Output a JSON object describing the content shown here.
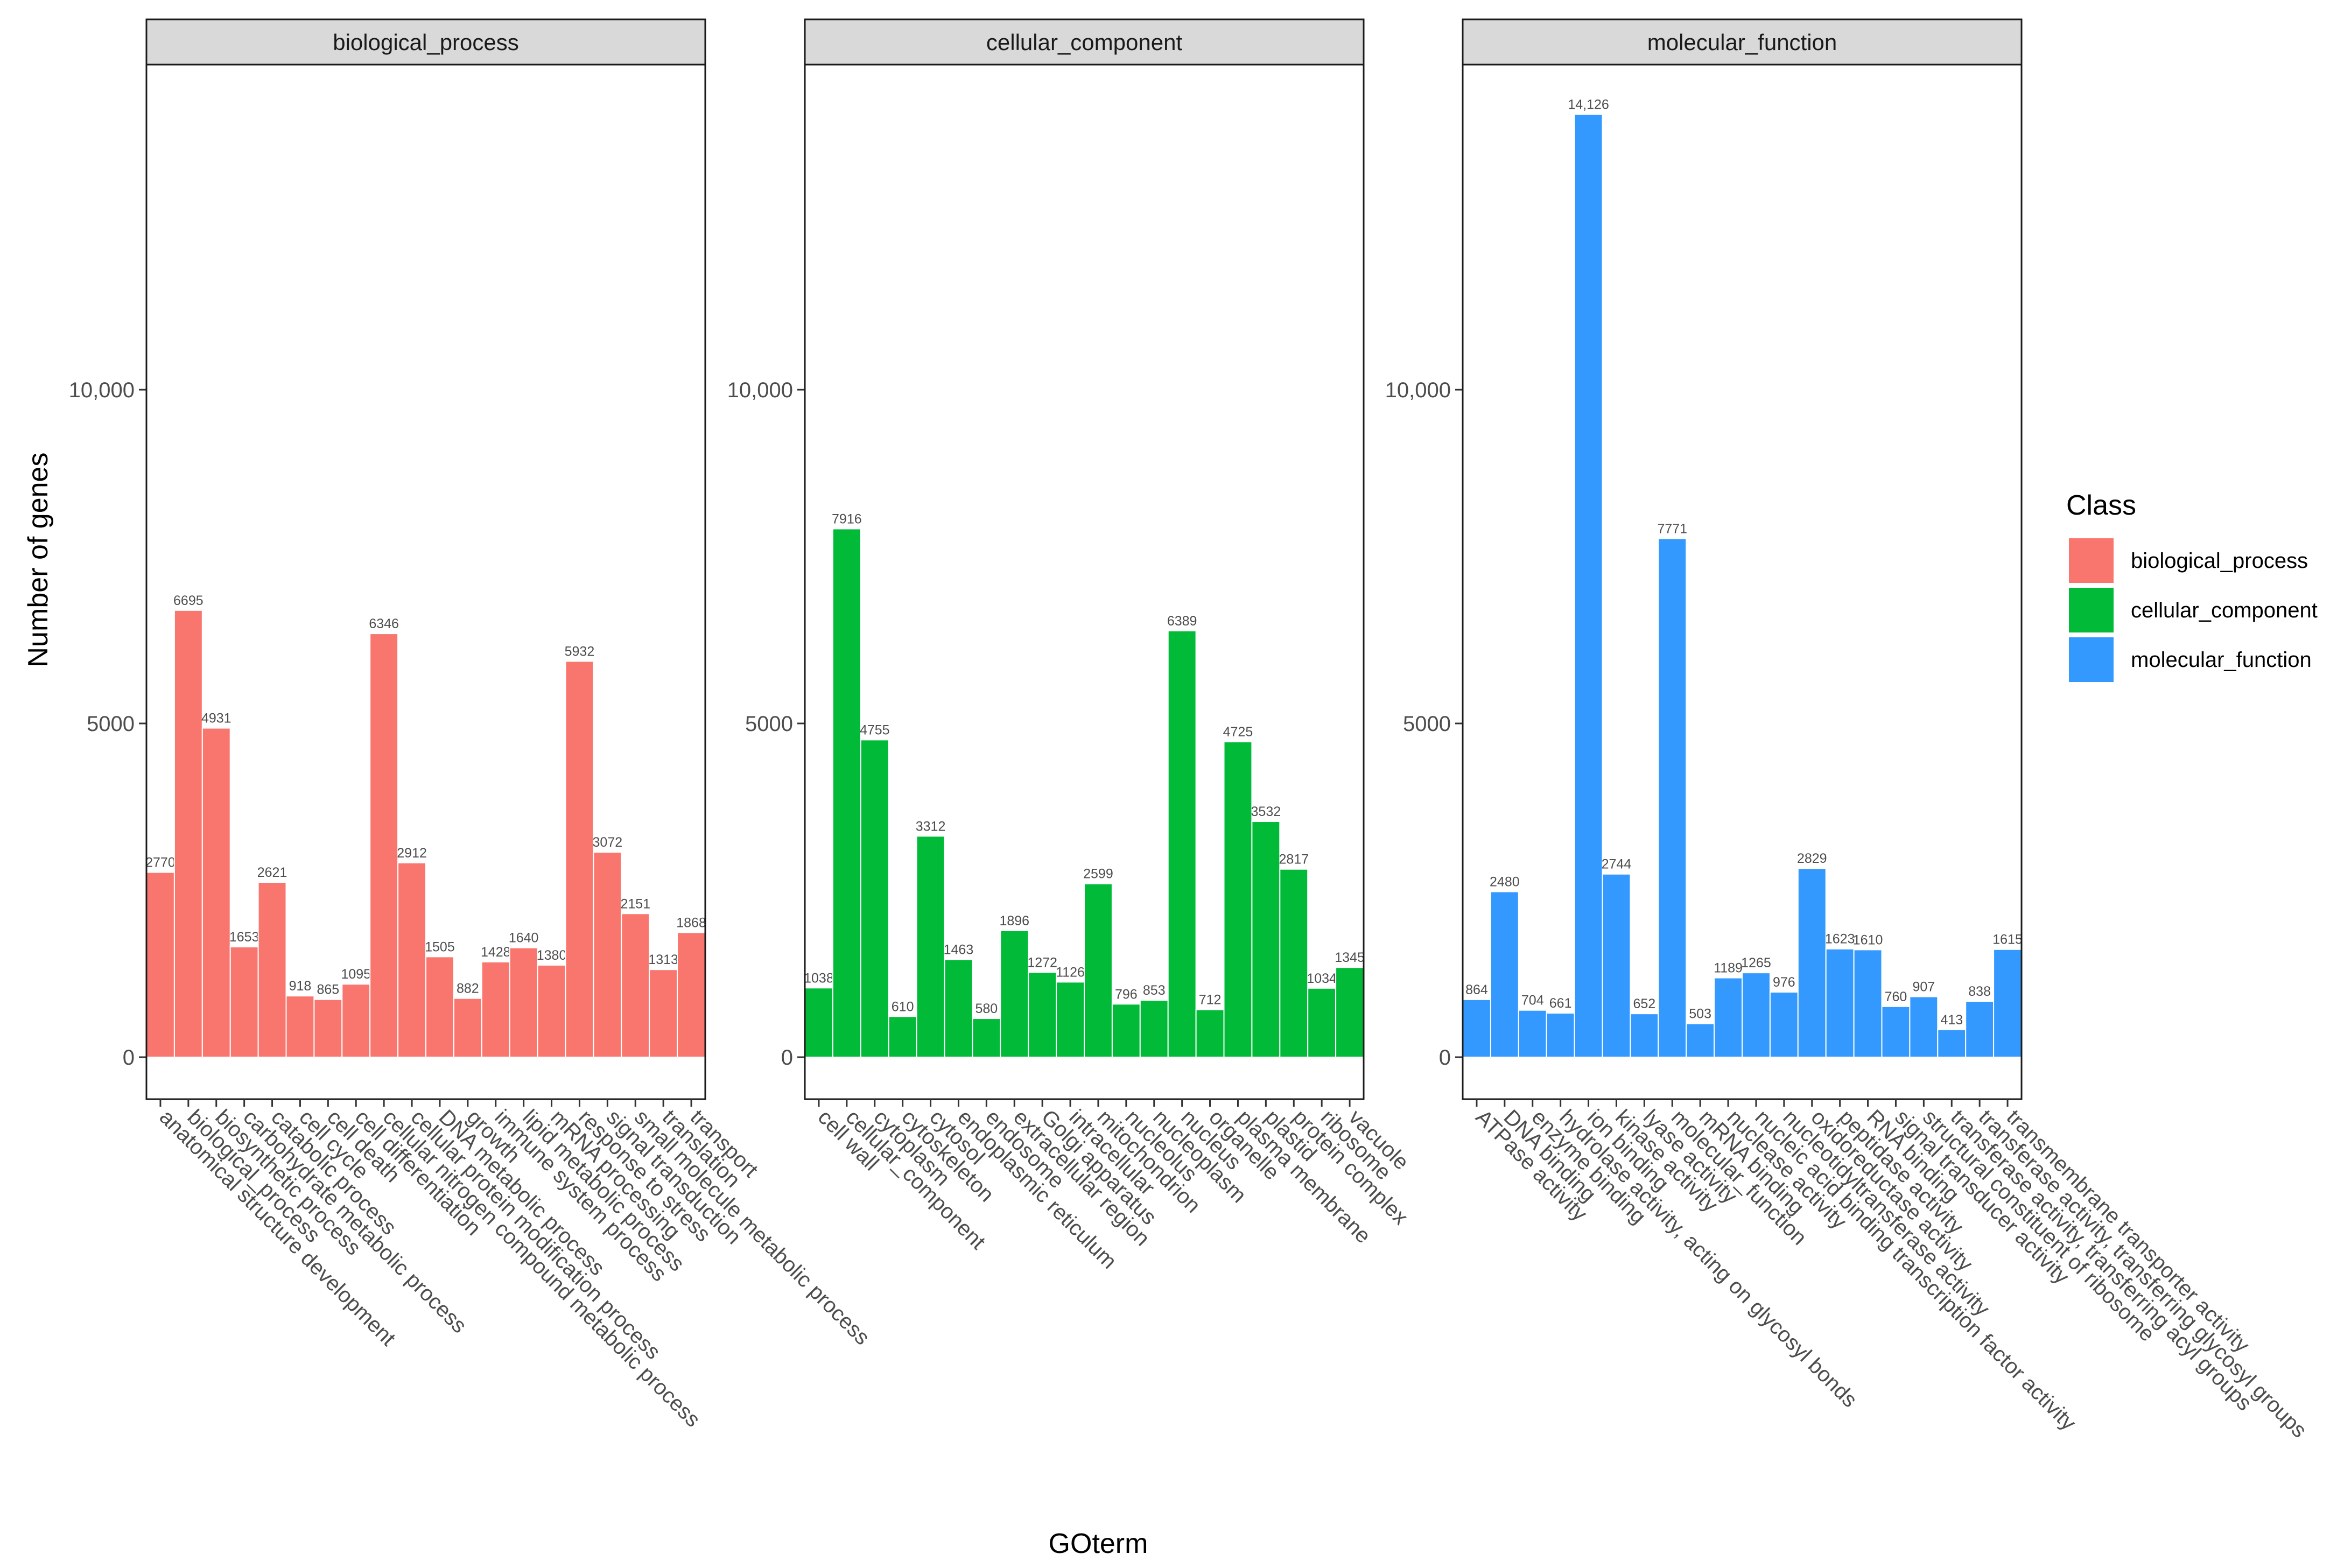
{
  "chart_data": {
    "type": "bar",
    "xlabel": "GOterm",
    "ylabel": "Number of genes",
    "ylim": [
      -700,
      15000
    ],
    "yticks": [
      0,
      5000,
      10000
    ],
    "ytick_labels": [
      "0",
      "5000",
      "10,000"
    ],
    "legend": {
      "title": "Class",
      "placement": "right",
      "entries": [
        {
          "name": "biological_process",
          "color": "#F8766D"
        },
        {
          "name": "cellular_component",
          "color": "#00BA38"
        },
        {
          "name": "molecular_function",
          "color": "#3399FF"
        }
      ]
    },
    "panels": [
      {
        "title": "biological_process",
        "color": "#F8766D",
        "categories": [
          "anatomical structure development",
          "biological_process",
          "biosynthetic process",
          "carbohydrate metabolic process",
          "catabolic process",
          "cell cycle",
          "cell death",
          "cell differentiation",
          "cellular nitrogen compound metabolic process",
          "cellular protein modification process",
          "DNA metabolic process",
          "growth",
          "immune system process",
          "lipid metabolic process",
          "mRNA processing",
          "response to stress",
          "signal transduction",
          "small molecule metabolic process",
          "translation",
          "transport"
        ],
        "values": [
          2770,
          6695,
          4931,
          1653,
          2621,
          918,
          865,
          1095,
          6346,
          2912,
          1505,
          882,
          1428,
          1640,
          1380,
          5932,
          3072,
          2151,
          1313,
          1868
        ],
        "value_labels": [
          "2770",
          "6695",
          "4931",
          "1653",
          "2621",
          "918",
          "865",
          "1095",
          "6346",
          "2912",
          "1505",
          "882",
          "1428",
          "1640",
          "1380",
          "5932",
          "3072",
          "2151",
          "1313",
          "1868"
        ]
      },
      {
        "title": "cellular_component",
        "color": "#00BA38",
        "categories": [
          "cell wall",
          "cellular_component",
          "cytoplasm",
          "cytoskeleton",
          "cytosol",
          "endoplasmic reticulum",
          "endosome",
          "extracellular region",
          "Golgi apparatus",
          "intracellular",
          "mitochondrion",
          "nucleolus",
          "nucleoplasm",
          "nucleus",
          "organelle",
          "plasma membrane",
          "plastid",
          "protein complex",
          "ribosome",
          "vacuole"
        ],
        "values": [
          1038,
          7916,
          4755,
          610,
          3312,
          1463,
          580,
          1896,
          1272,
          1126,
          2599,
          796,
          853,
          6389,
          712,
          4725,
          3532,
          2817,
          1034,
          1345
        ],
        "value_labels": [
          "1038",
          "7916",
          "4755",
          "610",
          "3312",
          "1463",
          "580",
          "1896",
          "1272",
          "1126",
          "2599",
          "796",
          "853",
          "6389",
          "712",
          "4725",
          "3532",
          "2817",
          "1034",
          "1345"
        ]
      },
      {
        "title": "molecular_function",
        "color": "#3399FF",
        "categories": [
          "ATPase activity",
          "DNA binding",
          "enzyme binding",
          "hydrolase activity, acting on glycosyl bonds",
          "ion binding",
          "kinase activity",
          "lyase activity",
          "molecular_function",
          "mRNA binding",
          "nuclease activity",
          "nucleic acid binding transcription factor activity",
          "nucleotidyltransferase activity",
          "oxidoreductase activity",
          "peptidase activity",
          "RNA binding",
          "signal transducer activity",
          "structural constituent of ribosome",
          "transferase activity, transferring acyl groups",
          "transferase activity, transferring glycosyl groups",
          "transmembrane transporter activity"
        ],
        "values": [
          864,
          2480,
          704,
          661,
          14126,
          2744,
          652,
          7771,
          503,
          1189,
          1265,
          976,
          2829,
          1623,
          1610,
          760,
          907,
          413,
          838,
          1615
        ],
        "value_labels": [
          "864",
          "2480",
          "704",
          "661",
          "14,126",
          "2744",
          "652",
          "7771",
          "503",
          "1189",
          "1265",
          "976",
          "2829",
          "1623",
          "1610",
          "760",
          "907",
          "413",
          "838",
          "1615"
        ]
      }
    ]
  }
}
